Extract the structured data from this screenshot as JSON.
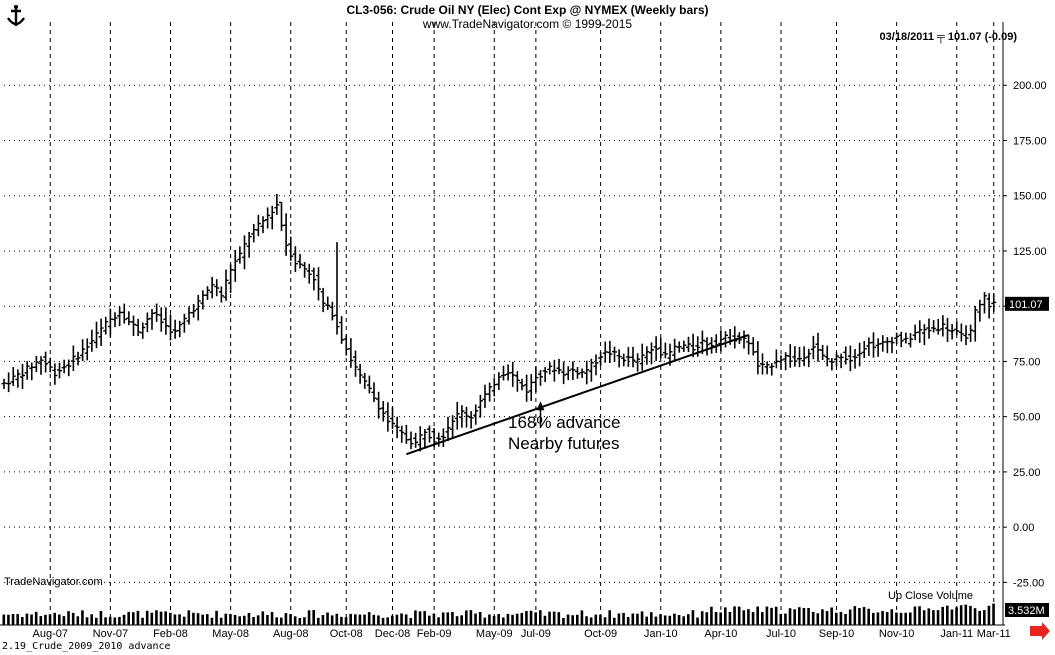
{
  "header": {
    "title": "CL3-056:  Crude Oil NY (Elec) Cont Exp @ NYMEX  (Weekly bars)",
    "subtitle": "www.TradeNavigator.com © 1999-2015",
    "quote": "03/18/2011 ╤ 101.07 (-0.09)"
  },
  "watermark": "TradeNavigator.com",
  "footer": "2.19_Crude_2009_2010 advance",
  "volume": {
    "legend": "Up Close   Volume",
    "last_label": "3.532M"
  },
  "annotations": {
    "line1": "168% advance",
    "line2": "Nearby futures"
  },
  "colors": {
    "bars": "#000000",
    "grid": "#000000",
    "arrow": "#e8241c",
    "last_price_box": "#000000"
  },
  "chart_data": {
    "type": "ohlc",
    "interval": "weekly",
    "ylim": [
      -37.5,
      225
    ],
    "y_ticks": [
      "-25.00",
      "0.00",
      "25.00",
      "50.00",
      "75.00",
      "100.00",
      "125.00",
      "150.00",
      "175.00",
      "200.00"
    ],
    "y_tick_values": [
      -25,
      0,
      25,
      50,
      75,
      100,
      125,
      150,
      175,
      200
    ],
    "x_labels": [
      "Aug-07",
      "Nov-07",
      "Feb-08",
      "May-08",
      "Aug-08",
      "Oct-08",
      "Dec-08",
      "Feb-09",
      "May-09",
      "Jul-09",
      "Oct-09",
      "Jan-10",
      "Apr-10",
      "Jul-10",
      "Sep-10",
      "Nov-10",
      "Jan-11",
      "Mar-11"
    ],
    "x_label_weeks": [
      10,
      23,
      36,
      49,
      62,
      74,
      84,
      93,
      106,
      115,
      129,
      142,
      155,
      168,
      180,
      193,
      206,
      214
    ],
    "last_price": 101.07,
    "trendline": {
      "from": {
        "week": 87,
        "price": 33
      },
      "to": {
        "week": 161,
        "price": 87
      }
    },
    "arrow": {
      "week": 116,
      "price": 57
    },
    "series": [
      {
        "name": "Close",
        "anchors": [
          [
            0,
            65
          ],
          [
            4,
            70
          ],
          [
            8,
            76
          ],
          [
            11,
            70
          ],
          [
            14,
            74
          ],
          [
            18,
            82
          ],
          [
            22,
            92
          ],
          [
            25,
            98
          ],
          [
            27,
            93
          ],
          [
            29,
            89
          ],
          [
            32,
            97
          ],
          [
            35,
            91
          ],
          [
            37,
            88
          ],
          [
            40,
            97
          ],
          [
            43,
            104
          ],
          [
            45,
            110
          ],
          [
            47,
            105
          ],
          [
            49,
            117
          ],
          [
            51,
            123
          ],
          [
            53,
            132
          ],
          [
            55,
            136
          ],
          [
            57,
            141
          ],
          [
            59,
            146
          ],
          [
            61,
            128
          ],
          [
            63,
            120
          ],
          [
            65,
            117
          ],
          [
            67,
            113
          ],
          [
            69,
            101
          ],
          [
            71,
            97
          ],
          [
            73,
            86
          ],
          [
            75,
            76
          ],
          [
            77,
            68
          ],
          [
            79,
            62
          ],
          [
            81,
            55
          ],
          [
            83,
            48
          ],
          [
            85,
            44
          ],
          [
            87,
            40
          ],
          [
            89,
            38
          ],
          [
            91,
            44
          ],
          [
            93,
            40
          ],
          [
            95,
            42
          ],
          [
            97,
            49
          ],
          [
            99,
            52
          ],
          [
            101,
            50
          ],
          [
            103,
            57
          ],
          [
            105,
            62
          ],
          [
            107,
            69
          ],
          [
            109,
            71
          ],
          [
            111,
            66
          ],
          [
            113,
            62
          ],
          [
            115,
            68
          ],
          [
            117,
            71
          ],
          [
            119,
            72
          ],
          [
            121,
            70
          ],
          [
            123,
            71
          ],
          [
            125,
            70
          ],
          [
            127,
            73
          ],
          [
            129,
            78
          ],
          [
            131,
            79
          ],
          [
            133,
            77
          ],
          [
            135,
            76
          ],
          [
            137,
            75
          ],
          [
            139,
            79
          ],
          [
            141,
            82
          ],
          [
            143,
            77
          ],
          [
            145,
            81
          ],
          [
            147,
            82
          ],
          [
            149,
            81
          ],
          [
            151,
            84
          ],
          [
            153,
            83
          ],
          [
            155,
            85
          ],
          [
            157,
            86
          ],
          [
            159,
            85
          ],
          [
            161,
            84
          ],
          [
            163,
            73
          ],
          [
            165,
            72
          ],
          [
            167,
            76
          ],
          [
            169,
            77
          ],
          [
            171,
            75
          ],
          [
            173,
            78
          ],
          [
            175,
            82
          ],
          [
            177,
            77
          ],
          [
            179,
            75
          ],
          [
            181,
            78
          ],
          [
            183,
            76
          ],
          [
            185,
            80
          ],
          [
            187,
            83
          ],
          [
            189,
            82
          ],
          [
            191,
            84
          ],
          [
            193,
            86
          ],
          [
            195,
            84
          ],
          [
            197,
            88
          ],
          [
            199,
            89
          ],
          [
            201,
            90
          ],
          [
            203,
            91
          ],
          [
            205,
            89
          ],
          [
            207,
            86
          ],
          [
            209,
            88
          ],
          [
            210,
            97
          ],
          [
            211,
            100
          ],
          [
            212,
            104
          ],
          [
            213,
            101
          ],
          [
            214,
            101
          ]
        ]
      },
      {
        "name": "Volume",
        "values": "per-week relative volume, last 3.532M"
      }
    ],
    "spikes": [
      {
        "week": 72,
        "high": 129
      },
      {
        "week": 60,
        "high": 147
      }
    ]
  }
}
